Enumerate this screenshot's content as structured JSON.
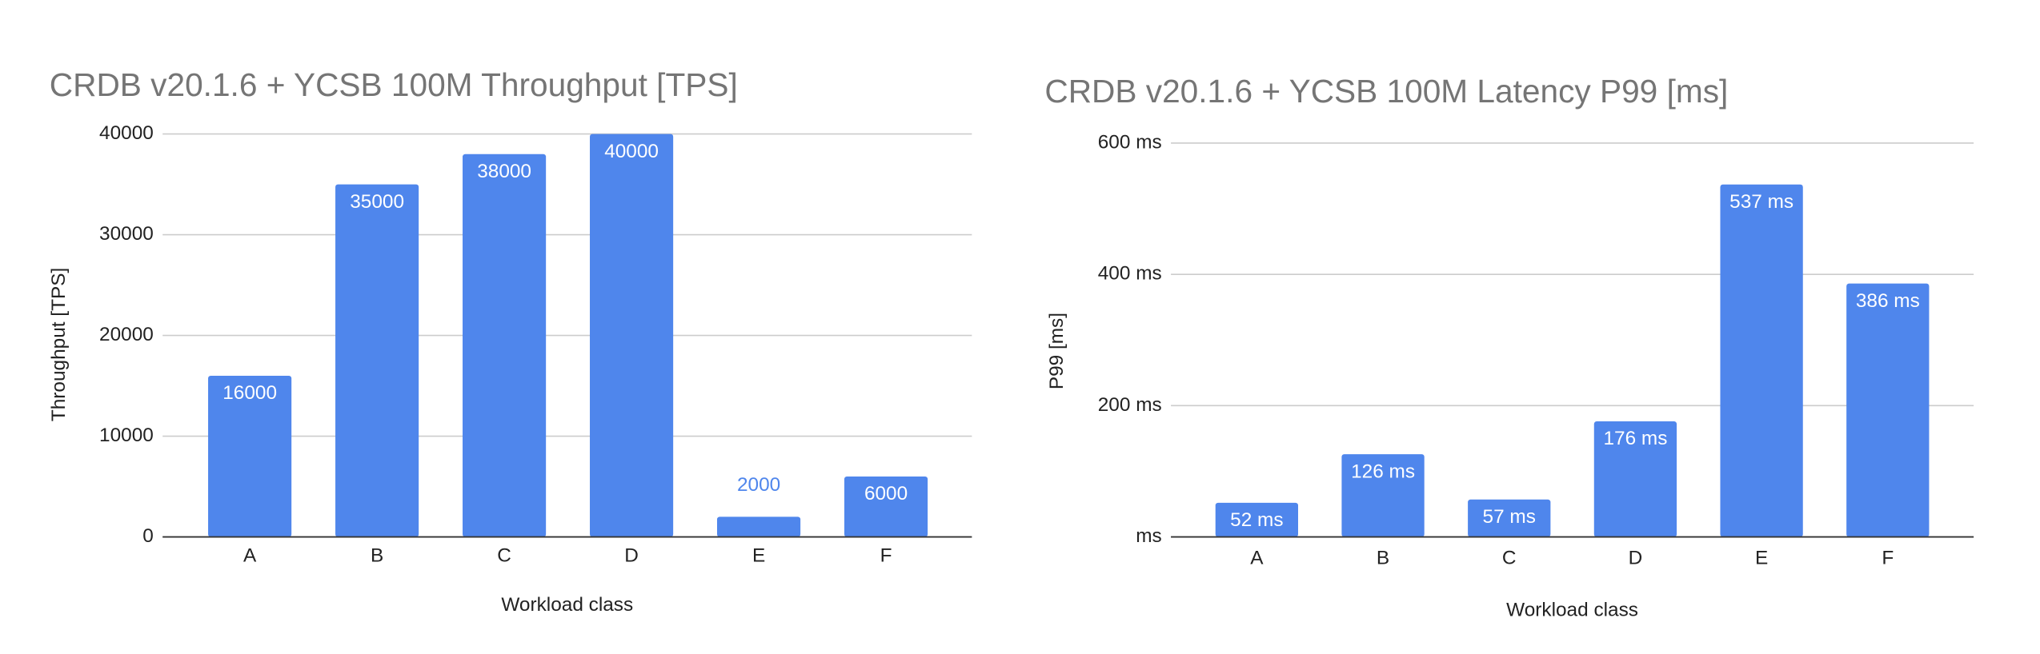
{
  "chart_data": [
    {
      "type": "bar",
      "title": "CRDB v20.1.6 + YCSB 100M Throughput [TPS]",
      "x_label": "Workload class",
      "y_label": "Throughput [TPS]",
      "categories": [
        "A",
        "B",
        "C",
        "D",
        "E",
        "F"
      ],
      "values": [
        16000,
        35000,
        38000,
        40000,
        2000,
        6000
      ],
      "color": "#4f86ec",
      "ylim": [
        0,
        40000
      ],
      "yticks": [
        0,
        10000,
        20000,
        30000,
        40000
      ],
      "grid": true
    },
    {
      "type": "bar",
      "title": "CRDB v20.1.6 + YCSB 100M Latency P99 [ms]",
      "x_label": "Workload class",
      "y_label": "P99 [ms]",
      "categories": [
        "A",
        "B",
        "C",
        "D",
        "E",
        "F"
      ],
      "values": [
        52,
        126,
        57,
        176,
        537,
        386
      ],
      "value_labels": [
        "52 ms",
        "126 ms",
        "57 ms",
        "176 ms",
        "537 ms",
        "386 ms"
      ],
      "color": "#4f86ec",
      "ylim": [
        0,
        600
      ],
      "yticks": [
        {
          "value": 0,
          "label": "ms"
        },
        {
          "value": 200,
          "label": "200 ms"
        },
        {
          "value": 400,
          "label": "400 ms"
        },
        {
          "value": 600,
          "label": "600 ms"
        }
      ],
      "grid": true
    }
  ]
}
